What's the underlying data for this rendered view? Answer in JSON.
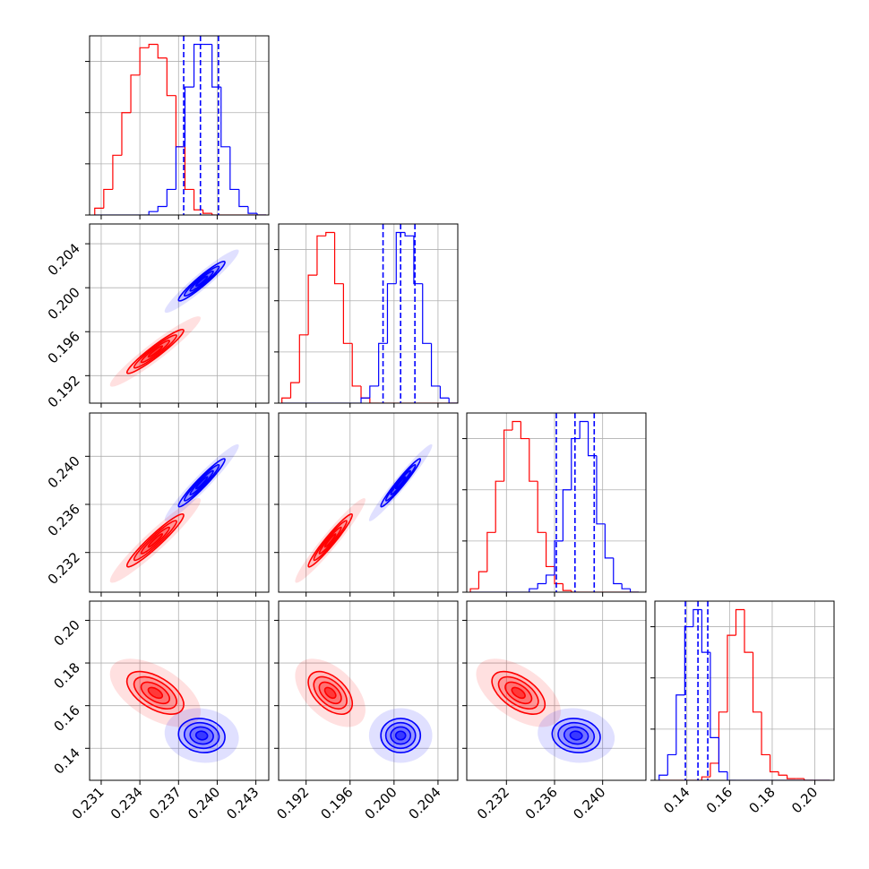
{
  "chart_data": {
    "type": "corner",
    "variables": [
      {
        "lim": [
          0.2301,
          0.244
        ],
        "ticks": [
          0.231,
          0.234,
          0.237,
          {
            "value": 0.24,
            "label": "0.240"
          },
          0.243
        ],
        "bins": [
          0.2305,
          0.2312,
          0.2319,
          0.2326,
          0.2333,
          0.234,
          0.2347,
          0.2354,
          0.2361,
          0.2368,
          0.2375,
          0.2382,
          0.2389,
          0.2396,
          0.2403,
          0.241,
          0.2417,
          0.2424,
          0.2431,
          0.2438
        ]
      },
      {
        "lim": [
          0.1895,
          0.2058
        ],
        "ticks": [
          0.192,
          0.196,
          {
            "value": 0.2,
            "label": "0.200"
          },
          0.204
        ],
        "bins": [
          0.1898,
          0.1906,
          0.1914,
          0.1922,
          0.193,
          0.1938,
          0.1946,
          0.1954,
          0.1962,
          0.197,
          0.1978,
          0.1986,
          0.1994,
          0.2002,
          0.201,
          0.2018,
          0.2026,
          0.2034,
          0.2042,
          0.205,
          0.2058
        ]
      },
      {
        "lim": [
          0.2287,
          0.2436
        ],
        "ticks": [
          0.232,
          0.236,
          {
            "value": 0.24,
            "label": "0.240"
          }
        ],
        "bins": [
          0.229,
          0.2297,
          0.2304,
          0.2311,
          0.2318,
          0.2325,
          0.2332,
          0.2339,
          0.2346,
          0.2353,
          0.236,
          0.2367,
          0.2374,
          0.2381,
          0.2388,
          0.2395,
          0.2402,
          0.2409,
          0.2416,
          0.2423,
          0.243
        ]
      },
      {
        "lim": [
          0.125,
          0.209
        ],
        "ticks": [
          0.14,
          0.16,
          0.18,
          {
            "value": 0.2,
            "label": "0.20"
          }
        ],
        "bins": [
          0.127,
          0.131,
          0.135,
          0.139,
          0.143,
          0.147,
          0.151,
          0.155,
          0.159,
          0.163,
          0.167,
          0.171,
          0.175,
          0.179,
          0.183,
          0.187,
          0.191,
          0.195,
          0.199,
          0.203,
          0.207
        ]
      }
    ],
    "hist_ylim": [
      0,
      105
    ],
    "hist_yticks": [
      0,
      30,
      60,
      90
    ],
    "grid": true,
    "series": [
      {
        "color": "#ff0000",
        "counts": [
          [
            4,
            15,
            35,
            60,
            82,
            98,
            100,
            92,
            70,
            40,
            15,
            3,
            1,
            0,
            0,
            0,
            0,
            0,
            0
          ],
          [
            3,
            12,
            40,
            75,
            98,
            100,
            70,
            35,
            10,
            3,
            0,
            0,
            0,
            0,
            0,
            0,
            0,
            0,
            0,
            0
          ],
          [
            2,
            12,
            35,
            65,
            95,
            100,
            90,
            65,
            35,
            15,
            5,
            1,
            0,
            0,
            0,
            0,
            0,
            0,
            0,
            0
          ],
          [
            0,
            0,
            0,
            0,
            0,
            2,
            10,
            40,
            85,
            100,
            75,
            40,
            15,
            5,
            3,
            1,
            1,
            0,
            0,
            0
          ]
        ],
        "means": [
          0.2352,
          0.1942,
          0.233,
          0.166
        ],
        "stds": [
          0.0011,
          0.001,
          0.0011,
          0.005
        ],
        "correlations": [
          [
            1,
            0.95,
            0.95,
            -0.55
          ],
          [
            0.95,
            1,
            0.96,
            -0.5
          ],
          [
            0.95,
            0.96,
            1,
            -0.55
          ],
          [
            -0.55,
            -0.5,
            -0.55,
            1
          ]
        ]
      },
      {
        "color": "#0000ff",
        "counts": [
          [
            0,
            0,
            0,
            0,
            0,
            0,
            2,
            5,
            15,
            40,
            75,
            100,
            100,
            75,
            40,
            15,
            5,
            1,
            0
          ],
          [
            0,
            0,
            0,
            0,
            0,
            0,
            0,
            0,
            0,
            3,
            10,
            35,
            70,
            100,
            98,
            70,
            35,
            10,
            3,
            0
          ],
          [
            0,
            0,
            0,
            0,
            0,
            0,
            0,
            2,
            5,
            10,
            30,
            60,
            90,
            100,
            80,
            40,
            20,
            5,
            2,
            0
          ],
          [
            3,
            15,
            50,
            90,
            100,
            75,
            25,
            5,
            0,
            0,
            0,
            0,
            0,
            0,
            0,
            0,
            0,
            0,
            0,
            0
          ]
        ],
        "means": [
          0.2388,
          0.2006,
          0.2378,
          0.146
        ],
        "stds": [
          0.0009,
          0.0009,
          0.001,
          0.004
        ],
        "correlations": [
          [
            1,
            0.95,
            0.96,
            -0.1
          ],
          [
            0.95,
            1,
            0.97,
            0
          ],
          [
            0.96,
            0.97,
            1,
            -0.1
          ],
          [
            -0.1,
            0,
            -0.1,
            1
          ]
        ],
        "quantiles": [
          [
            0.2374,
            0.2387,
            0.2401
          ],
          [
            0.199,
            0.2006,
            0.2019
          ],
          [
            0.23615,
            0.2377,
            0.2393
          ],
          [
            0.1393,
            0.1452,
            0.1498
          ]
        ]
      }
    ]
  }
}
